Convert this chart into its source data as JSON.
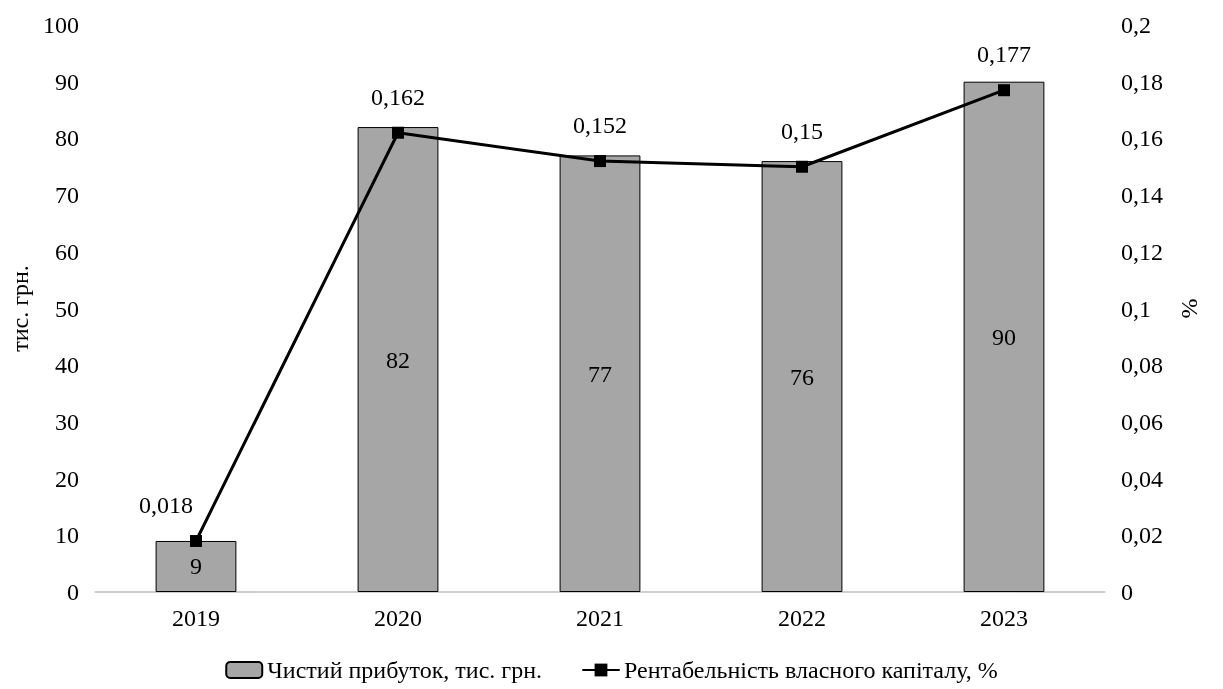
{
  "chart_data": {
    "type": "bar",
    "ylabel": "тис. грн.",
    "y2label": "%",
    "categories": [
      "2019",
      "2020",
      "2021",
      "2022",
      "2023"
    ],
    "series": [
      {
        "name": "Чистий прибуток, тис. грн.",
        "color": "#a6a6a6",
        "values": [
          9,
          82,
          77,
          76,
          90
        ],
        "value_labels": [
          "9",
          "82",
          "77",
          "76",
          "90"
        ]
      },
      {
        "name": "Рентабельність власного капіталу, %",
        "type": "line",
        "axis": "y2",
        "color": "#000000",
        "values": [
          0.018,
          0.162,
          0.152,
          0.15,
          0.177
        ],
        "value_labels": [
          "0,018",
          "0,162",
          "0,152",
          "0,15",
          "0,177"
        ]
      }
    ],
    "ylim": [
      0,
      100
    ],
    "yticks": [
      0,
      10,
      20,
      30,
      40,
      50,
      60,
      70,
      80,
      90,
      100
    ],
    "y2lim": [
      0,
      0.2
    ],
    "y2ticks": [
      0,
      {
        "value": 0.02,
        "label": "0,02"
      },
      {
        "value": 0.04,
        "label": "0,04"
      },
      {
        "value": 0.06,
        "label": "0,06"
      },
      {
        "value": 0.08,
        "label": "0,08"
      },
      {
        "value": 0.1,
        "label": "0,1"
      },
      {
        "value": 0.12,
        "label": "0,12"
      },
      {
        "value": 0.14,
        "label": "0,14"
      },
      {
        "value": 0.16,
        "label": "0,16"
      },
      {
        "value": 0.18,
        "label": "0,18"
      },
      {
        "value": 0.2,
        "label": "0,2"
      }
    ],
    "grid": false,
    "legend": "bottom",
    "marker": "square",
    "line_style": "solid"
  }
}
